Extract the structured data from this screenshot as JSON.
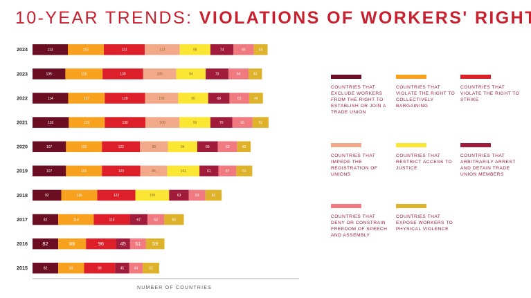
{
  "title": {
    "light": "10-YEAR TRENDS:",
    "bold": "VIOLATIONS OF WORKERS' RIGHTS"
  },
  "chart_data": {
    "type": "bar",
    "orientation": "horizontal",
    "stacked": true,
    "xlabel": "NUMBER OF COUNTRIES",
    "ylabel": "",
    "categories": [
      "2024",
      "2023",
      "2022",
      "2021",
      "2020",
      "2019",
      "2018",
      "2017",
      "2016",
      "2015"
    ],
    "series": [
      {
        "name": "Countries that exclude workers from the right to establish or join a trade union",
        "color": "#6b0e24",
        "values": [
          113,
          105,
          114,
          116,
          107,
          107,
          92,
          82,
          82,
          82
        ]
      },
      {
        "name": "Countries that violate the right to collectively bargaining",
        "color": "#f7a11f",
        "values": [
          115,
          119,
          117,
          115,
          115,
          115,
          115,
          114,
          89,
          83
        ]
      },
      {
        "name": "Countries that violate the right to strike",
        "color": "#dd1f2a",
        "values": [
          131,
          130,
          129,
          130,
          122,
          123,
          122,
          115,
          96,
          99
        ]
      },
      {
        "name": "Countries that impede the registration of unions",
        "color": "#f2a98a",
        "values": [
          112,
          106,
          106,
          109,
          89,
          86,
          null,
          null,
          null,
          null
        ]
      },
      {
        "name": "Countries that restrict access to justice",
        "color": "#fbe634",
        "values": [
          98,
          94,
          96,
          99,
          94,
          103,
          108,
          null,
          null,
          null
        ]
      },
      {
        "name": "Countries that arbitrarily arrest and detain trade union members",
        "color": "#a11b3b",
        "values": [
          74,
          73,
          68,
          70,
          66,
          61,
          63,
          57,
          45,
          45
        ]
      },
      {
        "name": "Countries that deny or constrain freedom of speech and assembly",
        "color": "#f07a80",
        "values": [
          65,
          64,
          63,
          65,
          62,
          57,
          53,
          53,
          51,
          44
        ]
      },
      {
        "name": "Countries that expose workers to physical violence",
        "color": "#deb22a",
        "values": [
          44,
          43,
          44,
          51,
          43,
          51,
          52,
          63,
          59,
          52
        ]
      }
    ],
    "legend": "right",
    "grid": false
  }
}
